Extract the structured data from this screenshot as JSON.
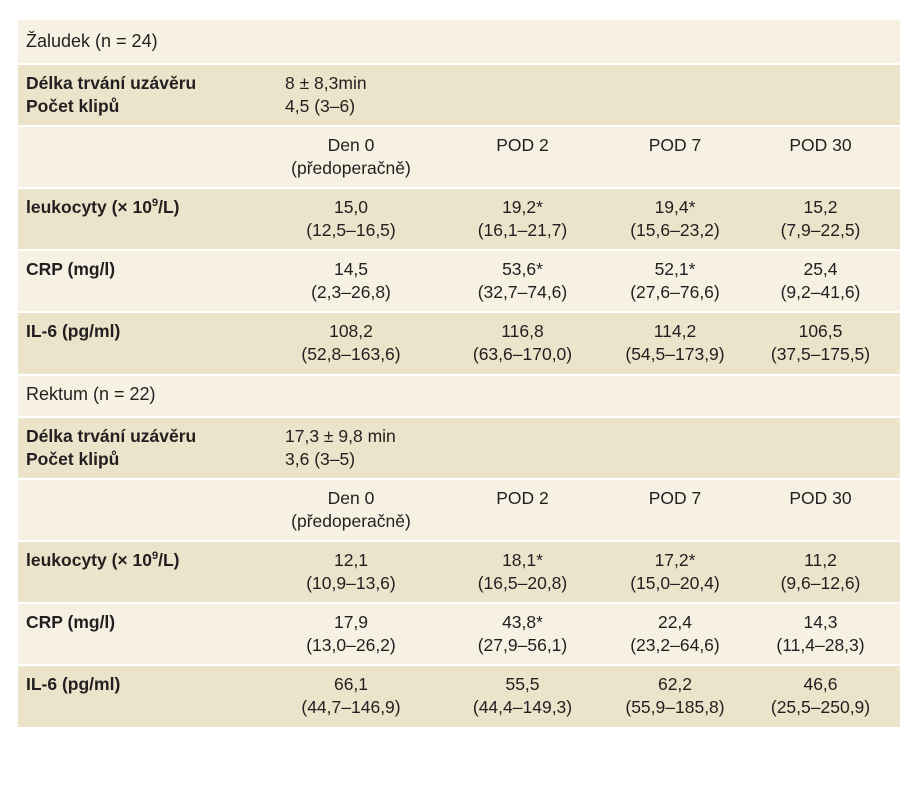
{
  "sections": [
    {
      "title": "Žaludek (n = 24)",
      "clip_info": {
        "duration_label": "Délka trvání uzávěru",
        "duration_value": "8 ± 8,3min",
        "clips_label": "Počet klipů",
        "clips_value": "4,5 (3–6)"
      },
      "columns": {
        "d0_main": "Den 0",
        "d0_sub": "(předoperačně)",
        "p2": "POD 2",
        "p7": "POD 7",
        "p30": "POD 30"
      },
      "rows": [
        {
          "label": "leukocyty (× 10",
          "label_sup": "9",
          "label_end": "/L)",
          "d0": [
            "15,0",
            "(12,5–16,5)"
          ],
          "p2": [
            "19,2*",
            "(16,1–21,7)"
          ],
          "p7": [
            "19,4*",
            "(15,6–23,2)"
          ],
          "p30": [
            "15,2",
            "(7,9–22,5)"
          ]
        },
        {
          "label": "CRP (mg/l)",
          "d0": [
            "14,5",
            "(2,3–26,8)"
          ],
          "p2": [
            "53,6*",
            "(32,7–74,6)"
          ],
          "p7": [
            "52,1*",
            "(27,6–76,6)"
          ],
          "p30": [
            "25,4",
            "(9,2–41,6)"
          ]
        },
        {
          "label": "IL-6 (pg/ml)",
          "d0": [
            "108,2",
            "(52,8–163,6)"
          ],
          "p2": [
            "116,8",
            "(63,6–170,0)"
          ],
          "p7": [
            "114,2",
            "(54,5–173,9)"
          ],
          "p30": [
            "106,5",
            "(37,5–175,5)"
          ]
        }
      ]
    },
    {
      "title": "Rektum (n = 22)",
      "clip_info": {
        "duration_label": "Délka trvání uzávěru",
        "duration_value": "17,3 ± 9,8 min",
        "clips_label": "Počet klipů",
        "clips_value": "3,6 (3–5)"
      },
      "columns": {
        "d0_main": "Den 0",
        "d0_sub": "(předoperačně)",
        "p2": "POD 2",
        "p7": "POD 7",
        "p30": "POD 30"
      },
      "rows": [
        {
          "label": "leukocyty (× 10",
          "label_sup": "9",
          "label_end": "/L)",
          "d0": [
            "12,1",
            "(10,9–13,6)"
          ],
          "p2": [
            "18,1*",
            "(16,5–20,8)"
          ],
          "p7": [
            "17,2*",
            "(15,0–20,4)"
          ],
          "p30": [
            "11,2",
            "(9,6–12,6)"
          ]
        },
        {
          "label": "CRP (mg/l)",
          "d0": [
            "17,9",
            "(13,0–26,2)"
          ],
          "p2": [
            "43,8*",
            "(27,9–56,1)"
          ],
          "p7": [
            "22,4",
            "(23,2–64,6)"
          ],
          "p30": [
            "14,3",
            "(11,4–28,3)"
          ]
        },
        {
          "label": "IL-6 (pg/ml)",
          "d0": [
            "66,1",
            "(44,7–146,9)"
          ],
          "p2": [
            "55,5",
            "(44,4–149,3)"
          ],
          "p7": [
            "62,2",
            "(55,9–185,8)"
          ],
          "p30": [
            "46,6",
            "(25,5–250,9)"
          ]
        }
      ]
    }
  ],
  "colors": {
    "row_light": "#f6f1e3",
    "row_dark": "#ebe3ca",
    "text": "#231f20"
  }
}
